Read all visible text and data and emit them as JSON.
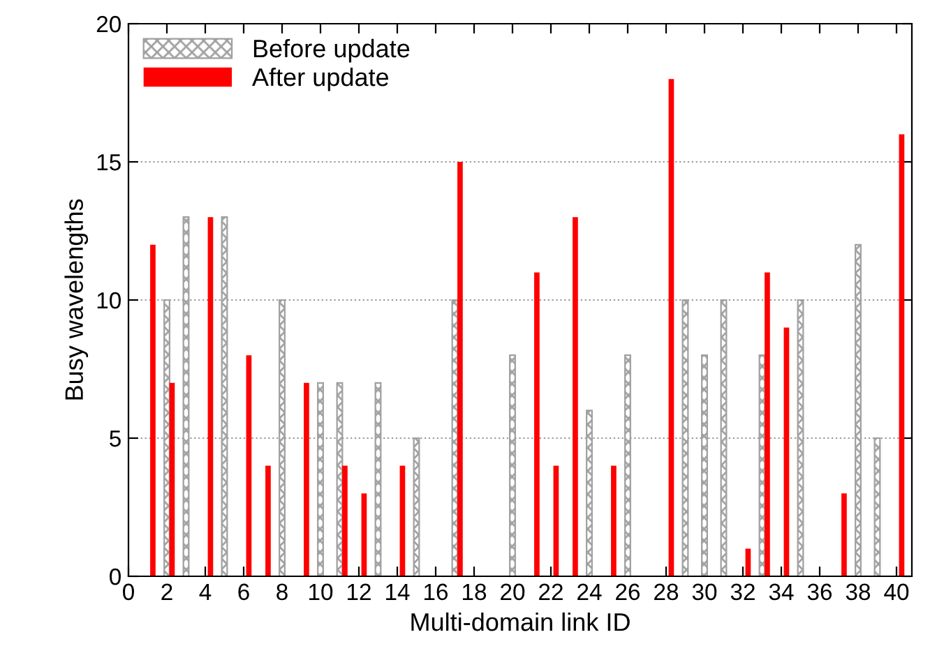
{
  "chart_data": {
    "type": "bar",
    "xlabel": "Multi-domain link ID",
    "ylabel": "Busy wavelengths",
    "x": [
      1,
      2,
      3,
      4,
      5,
      6,
      7,
      8,
      9,
      10,
      11,
      12,
      13,
      14,
      15,
      16,
      17,
      18,
      19,
      20,
      21,
      22,
      23,
      24,
      25,
      26,
      27,
      28,
      29,
      30,
      31,
      32,
      33,
      34,
      35,
      36,
      37,
      38,
      39,
      40
    ],
    "series": [
      {
        "name": "Before update",
        "color": "#a0a0a0",
        "values": [
          0,
          10,
          13,
          0,
          13,
          0,
          0,
          10,
          0,
          7,
          7,
          0,
          7,
          0,
          5,
          0,
          10,
          0,
          0,
          8,
          0,
          0,
          0,
          6,
          0,
          8,
          0,
          0,
          10,
          8,
          10,
          0,
          8,
          0,
          10,
          0,
          0,
          12,
          5,
          0
        ]
      },
      {
        "name": "After update",
        "color": "#ff0000",
        "values": [
          12,
          7,
          0,
          13,
          0,
          8,
          4,
          0,
          7,
          0,
          4,
          3,
          0,
          4,
          0,
          0,
          15,
          0,
          0,
          0,
          11,
          4,
          13,
          0,
          4,
          0,
          0,
          18,
          0,
          0,
          0,
          1,
          11,
          9,
          0,
          0,
          3,
          0,
          0,
          16
        ]
      }
    ],
    "xlim": [
      0,
      40.8
    ],
    "xticks": [
      0,
      2,
      4,
      6,
      8,
      10,
      12,
      14,
      16,
      18,
      20,
      22,
      24,
      26,
      28,
      30,
      32,
      34,
      36,
      38,
      40
    ],
    "ylim": [
      0,
      20
    ],
    "yticks": [
      0,
      5,
      10,
      15,
      20
    ],
    "grid": "y",
    "legend": "top left"
  }
}
